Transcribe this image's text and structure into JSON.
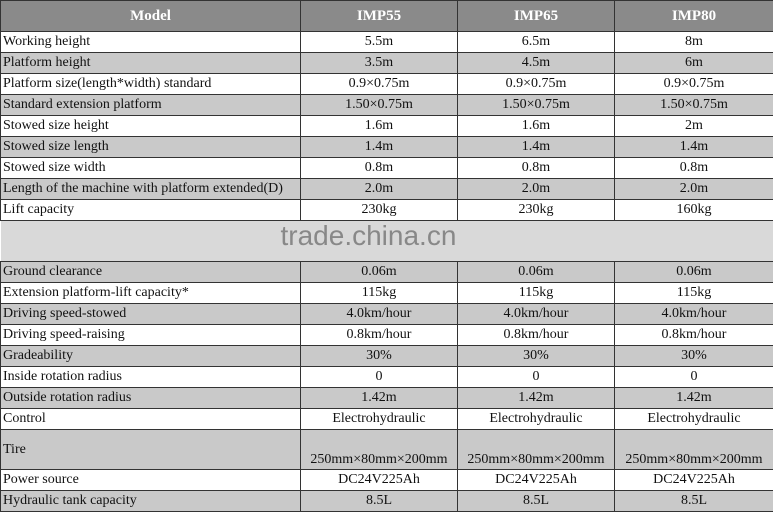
{
  "header": [
    "Model",
    "IMP55",
    "IMP65",
    "IMP80"
  ],
  "rows_top": [
    {
      "label": "Working height",
      "values": [
        "5.5m",
        "6.5m",
        "8m"
      ]
    },
    {
      "label": "Platform height",
      "values": [
        "3.5m",
        "4.5m",
        "6m"
      ]
    },
    {
      "label": "Platform size(length*width) standard",
      "values": [
        "0.9×0.75m",
        "0.9×0.75m",
        "0.9×0.75m"
      ]
    },
    {
      "label": "Standard extension platform",
      "values": [
        "1.50×0.75m",
        "1.50×0.75m",
        "1.50×0.75m"
      ]
    },
    {
      "label": "Stowed size  height",
      "values": [
        "1.6m",
        "1.6m",
        "2m"
      ]
    },
    {
      "label": "Stowed size  length",
      "values": [
        "1.4m",
        "1.4m",
        "1.4m"
      ]
    },
    {
      "label": "Stowed size  width",
      "values": [
        "0.8m",
        "0.8m",
        "0.8m"
      ]
    },
    {
      "label": "Length of the machine with platform extended(D)",
      "values": [
        "2.0m",
        "2.0m",
        "2.0m"
      ]
    },
    {
      "label": "Lift capacity",
      "values": [
        "230kg",
        "230kg",
        "160kg"
      ]
    }
  ],
  "watermark": "trade.china.cn",
  "rows_bottom": [
    {
      "label": "Ground clearance",
      "values": [
        "0.06m",
        "0.06m",
        "0.06m"
      ]
    },
    {
      "label": "Extension platform-lift capacity*",
      "values": [
        "115kg",
        "115kg",
        "115kg"
      ]
    },
    {
      "label": "Driving speed-stowed",
      "values": [
        "4.0km/hour",
        "4.0km/hour",
        "4.0km/hour"
      ]
    },
    {
      "label": "Driving speed-raising",
      "values": [
        "0.8km/hour",
        "0.8km/hour",
        "0.8km/hour"
      ]
    },
    {
      "label": "Gradeability",
      "values": [
        "30%",
        "30%",
        "30%"
      ]
    },
    {
      "label": "Inside rotation radius",
      "values": [
        "0",
        "0",
        "0"
      ]
    },
    {
      "label": "Outside rotation radius",
      "values": [
        "1.42m",
        "1.42m",
        "1.42m"
      ]
    },
    {
      "label": "Control",
      "values": [
        "Electrohydraulic",
        "Electrohydraulic",
        "Electrohydraulic"
      ]
    },
    {
      "label": "Tire",
      "values": [
        "250mm×80mm×200mm",
        "250mm×80mm×200mm",
        "250mm×80mm×200mm"
      ]
    },
    {
      "label": "Power source",
      "values": [
        "DC24V225Ah",
        "DC24V225Ah",
        "DC24V225Ah"
      ]
    },
    {
      "label": "Hydraulic tank capacity",
      "values": [
        "8.5L",
        "8.5L",
        "8.5L"
      ]
    }
  ]
}
